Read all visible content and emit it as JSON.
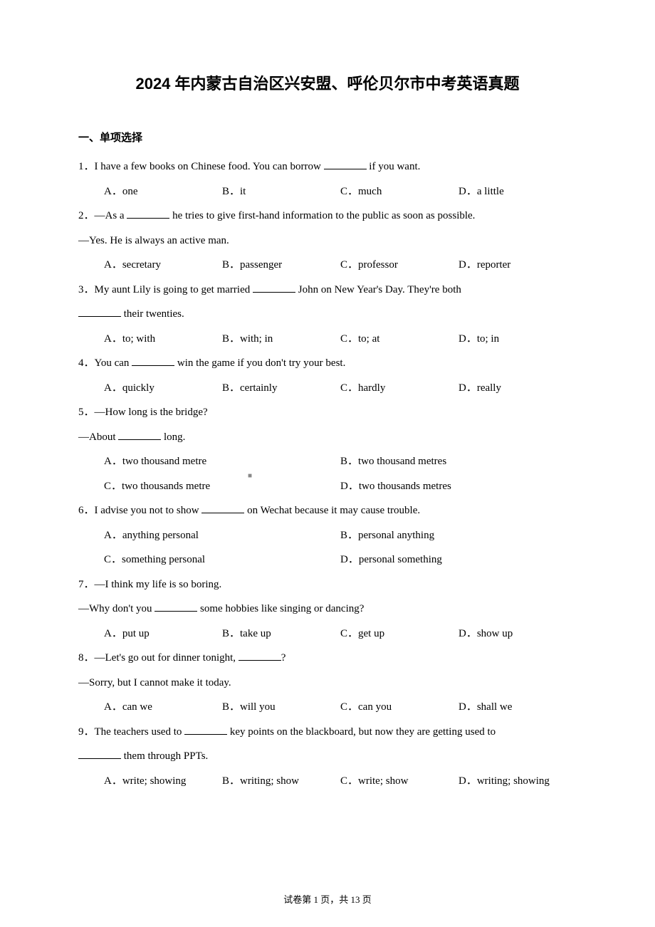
{
  "title": "2024 年内蒙古自治区兴安盟、呼伦贝尔市中考英语真题",
  "section_header": "一、单项选择",
  "questions": [
    {
      "num": "1",
      "text_parts": [
        "I have a few books on Chinese food. You can borrow ",
        " if you want."
      ],
      "layout": "four-col",
      "options": [
        {
          "label": "A",
          "text": "one"
        },
        {
          "label": "B",
          "text": "it"
        },
        {
          "label": "C",
          "text": "much"
        },
        {
          "label": "D",
          "text": "a little"
        }
      ]
    },
    {
      "num": "2",
      "lines": [
        {
          "parts": [
            "—As a ",
            " he tries to give first-hand information to the public as soon as possible."
          ]
        },
        {
          "parts": [
            "—Yes. He is always an active man."
          ],
          "noindent": true
        }
      ],
      "layout": "four-col",
      "options": [
        {
          "label": "A",
          "text": "secretary"
        },
        {
          "label": "B",
          "text": "passenger"
        },
        {
          "label": "C",
          "text": "professor"
        },
        {
          "label": "D",
          "text": "reporter"
        }
      ]
    },
    {
      "num": "3",
      "lines": [
        {
          "parts": [
            "My aunt Lily is going to get married ",
            " John on New Year's Day. They're both"
          ]
        },
        {
          "parts": [
            "",
            " their twenties."
          ],
          "noindent": true
        }
      ],
      "layout": "four-col",
      "options": [
        {
          "label": "A",
          "text": "to; with"
        },
        {
          "label": "B",
          "text": "with; in"
        },
        {
          "label": "C",
          "text": "to; at"
        },
        {
          "label": "D",
          "text": "to; in"
        }
      ]
    },
    {
      "num": "4",
      "text_parts": [
        "You can ",
        " win the game if you don't try your best."
      ],
      "layout": "four-col",
      "options": [
        {
          "label": "A",
          "text": "quickly"
        },
        {
          "label": "B",
          "text": "certainly"
        },
        {
          "label": "C",
          "text": "hardly"
        },
        {
          "label": "D",
          "text": "really"
        }
      ]
    },
    {
      "num": "5",
      "lines": [
        {
          "parts": [
            "—How long is the bridge?"
          ]
        },
        {
          "parts": [
            "—About ",
            " long."
          ],
          "noindent": true
        }
      ],
      "layout": "two-col",
      "options": [
        {
          "label": "A",
          "text": "two thousand metre"
        },
        {
          "label": "B",
          "text": "two thousand metres"
        },
        {
          "label": "C",
          "text": "two thousands metre"
        },
        {
          "label": "D",
          "text": "two thousands metres"
        }
      ]
    },
    {
      "num": "6",
      "text_parts": [
        "I advise you not to show ",
        " on Wechat because it may cause trouble."
      ],
      "layout": "two-col",
      "options": [
        {
          "label": "A",
          "text": "anything personal"
        },
        {
          "label": "B",
          "text": "personal anything"
        },
        {
          "label": "C",
          "text": "something personal"
        },
        {
          "label": "D",
          "text": "personal something"
        }
      ]
    },
    {
      "num": "7",
      "lines": [
        {
          "parts": [
            "—I think my life is so boring."
          ]
        },
        {
          "parts": [
            "—Why don't you ",
            " some hobbies like singing or dancing?"
          ],
          "noindent": true
        }
      ],
      "layout": "four-col",
      "options": [
        {
          "label": "A",
          "text": "put up"
        },
        {
          "label": "B",
          "text": "take up"
        },
        {
          "label": "C",
          "text": "get up"
        },
        {
          "label": "D",
          "text": "show up"
        }
      ]
    },
    {
      "num": "8",
      "lines": [
        {
          "parts": [
            "—Let's go out for dinner tonight, ",
            "?"
          ]
        },
        {
          "parts": [
            "—Sorry, but I cannot make it today."
          ],
          "noindent": true
        }
      ],
      "layout": "four-col",
      "options": [
        {
          "label": "A",
          "text": "can we"
        },
        {
          "label": "B",
          "text": "will you"
        },
        {
          "label": "C",
          "text": "can you"
        },
        {
          "label": "D",
          "text": "shall we"
        }
      ]
    },
    {
      "num": "9",
      "lines": [
        {
          "parts": [
            "The teachers used to ",
            " key points on the blackboard, but now they are getting used to"
          ]
        },
        {
          "parts": [
            "",
            " them through PPTs."
          ],
          "noindent": true
        }
      ],
      "layout": "four-col",
      "options": [
        {
          "label": "A",
          "text": "write; showing"
        },
        {
          "label": "B",
          "text": "writing; show"
        },
        {
          "label": "C",
          "text": "write; show"
        },
        {
          "label": "D",
          "text": "writing; showing"
        }
      ]
    }
  ],
  "marker_text": "■",
  "footer": "试卷第 1 页，共 13 页"
}
